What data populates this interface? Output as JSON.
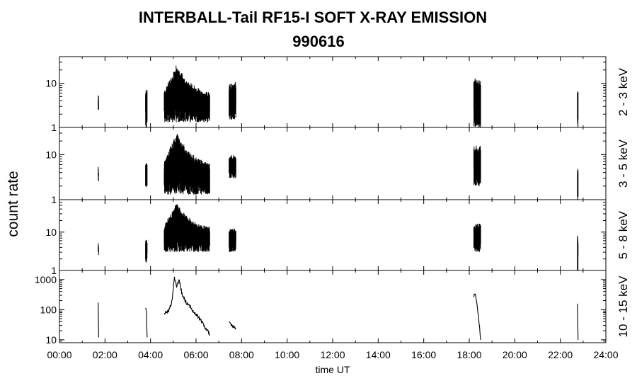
{
  "title_line1": "INTERBALL-Tail RF15-I SOFT X-RAY EMISSION",
  "title_line2": "990616",
  "ylabel": "count rate",
  "xlabel": "time UT",
  "chart_data": {
    "type": "line",
    "x_unit": "hours UT",
    "x_ticks": [
      "00:00",
      "02:00",
      "04:00",
      "06:00",
      "08:00",
      "10:00",
      "12:00",
      "14:00",
      "16:00",
      "18:00",
      "20:00",
      "22:00",
      "24:00"
    ],
    "xlim": [
      0,
      24
    ],
    "y_scale": "log",
    "panels": [
      {
        "name": "2 - 3 keV",
        "ylim": [
          1,
          40
        ],
        "yticks": [
          1,
          10
        ],
        "y_tick_labels": [
          "1",
          "10"
        ],
        "bursts": [
          {
            "t": [
              1.7,
              1.72
            ],
            "low": 2.5,
            "high": 6
          },
          {
            "t": [
              3.78,
              3.85
            ],
            "low": 1,
            "high": 8
          },
          {
            "t": [
              4.6,
              6.6
            ],
            "low": 1.3,
            "high": 28,
            "peak_t": 5.15
          },
          {
            "t": [
              7.45,
              7.75
            ],
            "low": 1.5,
            "high": 11
          },
          {
            "t": [
              18.2,
              18.5
            ],
            "low": 1,
            "high": 14
          },
          {
            "t": [
              22.75,
              22.78
            ],
            "low": 1,
            "high": 8
          }
        ]
      },
      {
        "name": "3 - 5 keV",
        "ylim": [
          1,
          40
        ],
        "yticks": [
          1,
          10
        ],
        "y_tick_labels": [
          "1",
          "10"
        ],
        "bursts": [
          {
            "t": [
              1.7,
              1.72
            ],
            "low": 2.5,
            "high": 6
          },
          {
            "t": [
              3.78,
              3.85
            ],
            "low": 1.6,
            "high": 7
          },
          {
            "t": [
              4.6,
              6.6
            ],
            "low": 1.3,
            "high": 32,
            "peak_t": 5.15
          },
          {
            "t": [
              7.45,
              7.75
            ],
            "low": 3,
            "high": 10
          },
          {
            "t": [
              18.2,
              18.5
            ],
            "low": 2,
            "high": 16
          },
          {
            "t": [
              22.75,
              22.78
            ],
            "low": 1,
            "high": 6
          }
        ]
      },
      {
        "name": "5 - 8 keV",
        "ylim": [
          1,
          70
        ],
        "yticks": [
          1,
          10
        ],
        "y_tick_labels": [
          "1",
          "10"
        ],
        "bursts": [
          {
            "t": [
              1.7,
              1.72
            ],
            "low": 2.5,
            "high": 6
          },
          {
            "t": [
              3.78,
              3.85
            ],
            "low": 1.6,
            "high": 7
          },
          {
            "t": [
              4.6,
              6.6
            ],
            "low": 3,
            "high": 60,
            "peak_t": 5.15
          },
          {
            "t": [
              7.45,
              7.75
            ],
            "low": 3,
            "high": 13
          },
          {
            "t": [
              18.2,
              18.5
            ],
            "low": 3,
            "high": 18
          },
          {
            "t": [
              22.75,
              22.78
            ],
            "low": 1,
            "high": 9
          }
        ]
      },
      {
        "name": "10 - 15 keV",
        "ylim": [
          8,
          2000
        ],
        "yticks": [
          10,
          100,
          1000
        ],
        "y_tick_labels": [
          "10",
          "100",
          "1000"
        ],
        "line": true,
        "segments": [
          {
            "t": [
              1.7,
              1.72
            ],
            "v": [
              160,
              12
            ]
          },
          {
            "t": [
              3.78,
              3.82,
              3.85
            ],
            "v": [
              105,
              80,
              12
            ]
          },
          {
            "t": [
              4.6,
              4.8,
              4.95,
              5.05,
              5.15,
              5.25,
              5.4,
              5.6,
              5.8,
              6.0,
              6.2,
              6.4,
              6.6
            ],
            "v": [
              80,
              90,
              200,
              1200,
              600,
              950,
              300,
              160,
              110,
              70,
              45,
              25,
              15
            ]
          },
          {
            "t": [
              7.45,
              7.6,
              7.75
            ],
            "v": [
              35,
              28,
              24
            ]
          },
          {
            "t": [
              18.2,
              18.25,
              18.35,
              18.45,
              18.5
            ],
            "v": [
              250,
              380,
              120,
              30,
              10
            ]
          },
          {
            "t": [
              22.75,
              22.78
            ],
            "v": [
              180,
              10
            ]
          }
        ]
      }
    ]
  }
}
